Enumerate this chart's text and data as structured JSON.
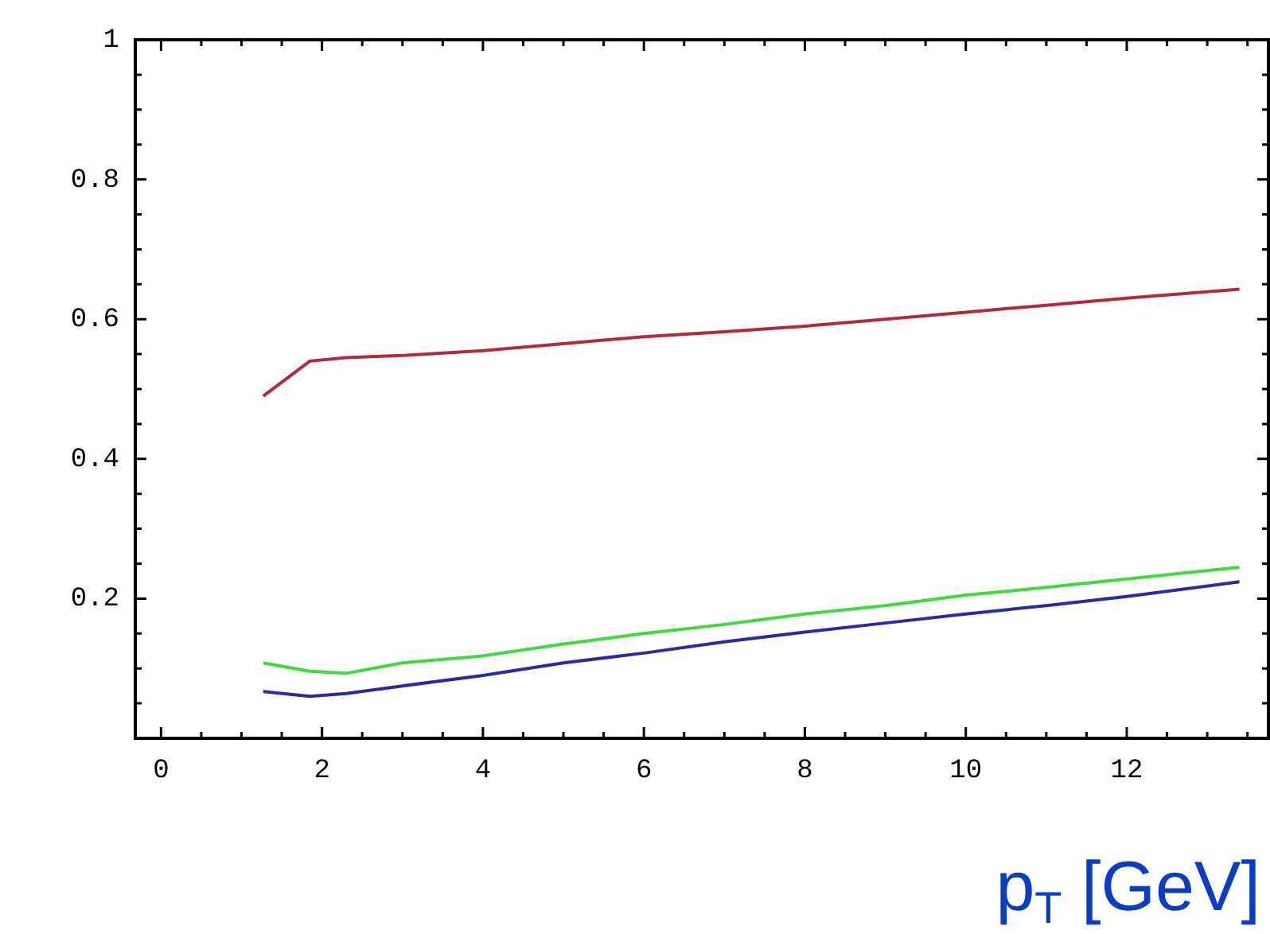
{
  "chart_data": {
    "type": "line",
    "xlabel": "p$_{T}$ [GeV]",
    "xlim": [
      -0.32,
      13.76
    ],
    "ylim": [
      0,
      1
    ],
    "xticks": [
      0,
      {
        "value": 0.5,
        "label": null
      },
      {
        "value": 1,
        "label": null
      },
      {
        "value": 1.5,
        "label": null
      },
      2,
      {
        "value": 2.5,
        "label": null
      },
      {
        "value": 3,
        "label": null
      },
      {
        "value": 3.5,
        "label": null
      },
      4,
      {
        "value": 4.5,
        "label": null
      },
      {
        "value": 5,
        "label": null
      },
      {
        "value": 5.5,
        "label": null
      },
      6,
      {
        "value": 6.5,
        "label": null
      },
      {
        "value": 7,
        "label": null
      },
      {
        "value": 7.5,
        "label": null
      },
      8,
      {
        "value": 8.5,
        "label": null
      },
      {
        "value": 9,
        "label": null
      },
      {
        "value": 9.5,
        "label": null
      },
      10,
      {
        "value": 10.5,
        "label": null
      },
      {
        "value": 11,
        "label": null
      },
      {
        "value": 11.5,
        "label": null
      },
      12,
      {
        "value": 12.5,
        "label": null
      },
      {
        "value": 13,
        "label": null
      },
      {
        "value": 13.5,
        "label": null
      }
    ],
    "yticks": [
      {
        "value": 0,
        "label": null
      },
      {
        "value": 0.05,
        "label": null
      },
      {
        "value": 0.1,
        "label": null
      },
      {
        "value": 0.15,
        "label": null
      },
      0.2,
      {
        "value": 0.25,
        "label": null
      },
      {
        "value": 0.3,
        "label": null
      },
      {
        "value": 0.35,
        "label": null
      },
      0.4,
      {
        "value": 0.45,
        "label": null
      },
      {
        "value": 0.5,
        "label": null
      },
      {
        "value": 0.55,
        "label": null
      },
      0.6,
      {
        "value": 0.65,
        "label": null
      },
      {
        "value": 0.7,
        "label": null
      },
      {
        "value": 0.75,
        "label": null
      },
      0.8,
      {
        "value": 0.85,
        "label": null
      },
      {
        "value": 0.9,
        "label": null
      },
      {
        "value": 0.95,
        "label": null
      },
      1
    ],
    "grid": false,
    "legend": false,
    "marker": "none",
    "line_style": "solid",
    "x": [
      1.27,
      1.85,
      2.3,
      3,
      4,
      5,
      6,
      7,
      8,
      9,
      10,
      11,
      12,
      13.4
    ],
    "series": [
      {
        "color": "#b8283a",
        "values": [
          0.49,
          0.54,
          0.545,
          0.548,
          0.555,
          0.565,
          0.575,
          0.582,
          0.59,
          0.6,
          0.61,
          0.62,
          0.63,
          0.643
        ]
      },
      {
        "color": "#3ddc3d",
        "values": [
          0.108,
          0.096,
          0.093,
          0.108,
          0.118,
          0.135,
          0.15,
          0.163,
          0.178,
          0.19,
          0.205,
          0.216,
          0.228,
          0.245
        ]
      },
      {
        "color": "#2a2aa8",
        "values": [
          0.067,
          0.06,
          0.064,
          0.075,
          0.09,
          0.108,
          0.122,
          0.138,
          0.152,
          0.165,
          0.178,
          0.19,
          0.203,
          0.224
        ]
      }
    ]
  }
}
